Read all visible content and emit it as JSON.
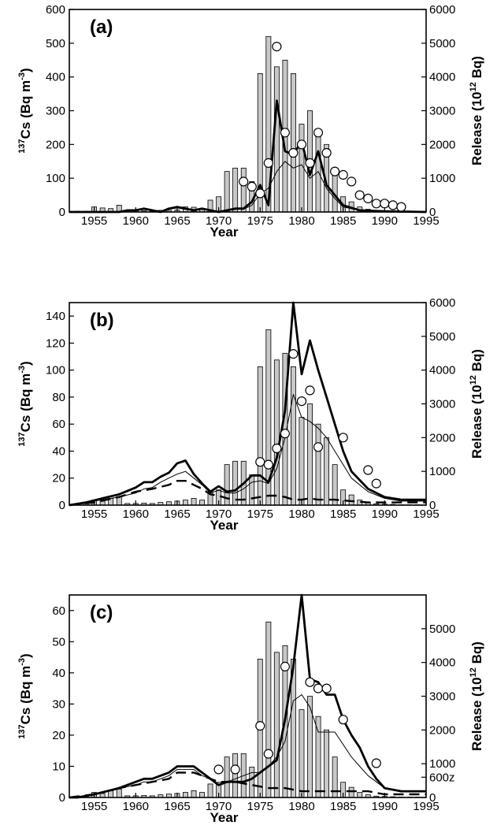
{
  "chart_data": [
    {
      "type": "bar",
      "panel_label": "(a)",
      "xlabel": "Year",
      "ylabel_left": {
        "sup": "137",
        "main": "Cs (Bq m",
        "unit_sup": "-3",
        "tail": ")"
      },
      "ylabel_right": {
        "main": "Release (10",
        "sup": "12",
        "tail": " Bq)"
      },
      "xlim": [
        1952,
        1995
      ],
      "ylim_left": [
        0,
        600
      ],
      "ylim_right": [
        0,
        6000
      ],
      "xticks": [
        "1955",
        "1960",
        "1965",
        "1970",
        "1975",
        "1980",
        "1985",
        "1990",
        "1995"
      ],
      "yticks_left": [
        "0",
        "100",
        "200",
        "300",
        "400",
        "500",
        "600"
      ],
      "yticks_right": [
        "0",
        "1000",
        "2000",
        "3000",
        "4000",
        "5000",
        "6000"
      ],
      "grid": false,
      "bars_release": {
        "x": [
          1952,
          1953,
          1954,
          1955,
          1956,
          1957,
          1958,
          1959,
          1960,
          1961,
          1962,
          1963,
          1964,
          1965,
          1966,
          1967,
          1968,
          1969,
          1970,
          1971,
          1972,
          1973,
          1974,
          1975,
          1976,
          1977,
          1978,
          1979,
          1980,
          1981,
          1982,
          1983,
          1984,
          1985,
          1986,
          1987,
          1988,
          1989,
          1990,
          1991,
          1992,
          1993,
          1994
        ],
        "values": [
          0,
          20,
          20,
          150,
          120,
          100,
          200,
          50,
          50,
          40,
          30,
          50,
          50,
          60,
          150,
          140,
          100,
          350,
          450,
          1200,
          1300,
          1300,
          900,
          4100,
          5200,
          4300,
          4500,
          4100,
          2600,
          3000,
          2400,
          2000,
          1200,
          450,
          300,
          150,
          80,
          40,
          30,
          20,
          10,
          10,
          10
        ]
      },
      "series": [
        {
          "role": "model-thick",
          "style": "thick",
          "x": [
            1952,
            1955,
            1958,
            1959,
            1960,
            1961,
            1962,
            1963,
            1964,
            1965,
            1966,
            1967,
            1968,
            1969,
            1970,
            1971,
            1972,
            1973,
            1974,
            1975,
            1976,
            1977,
            1978,
            1979,
            1980,
            1981,
            1982,
            1983,
            1984,
            1985,
            1987,
            1990,
            1995
          ],
          "y": [
            0,
            0,
            0,
            5,
            5,
            10,
            5,
            0,
            10,
            15,
            10,
            5,
            10,
            5,
            0,
            5,
            10,
            10,
            30,
            80,
            20,
            330,
            180,
            170,
            210,
            110,
            180,
            80,
            50,
            20,
            5,
            2,
            0
          ]
        },
        {
          "role": "model-thin",
          "style": "thin",
          "x": [
            1952,
            1955,
            1958,
            1959,
            1960,
            1961,
            1962,
            1963,
            1964,
            1965,
            1966,
            1967,
            1968,
            1969,
            1970,
            1971,
            1972,
            1973,
            1974,
            1975,
            1976,
            1977,
            1978,
            1979,
            1980,
            1981,
            1982,
            1983,
            1984,
            1985,
            1987,
            1990,
            1995
          ],
          "y": [
            0,
            0,
            0,
            3,
            5,
            8,
            5,
            0,
            8,
            12,
            8,
            5,
            8,
            3,
            0,
            3,
            8,
            8,
            20,
            55,
            70,
            120,
            150,
            130,
            140,
            100,
            120,
            70,
            40,
            15,
            5,
            2,
            0
          ]
        },
        {
          "role": "observations",
          "style": "circle",
          "x": [
            1973,
            1974,
            1975,
            1976,
            1977,
            1978,
            1979,
            1980,
            1981,
            1982,
            1983,
            1984,
            1985,
            1986,
            1987,
            1988,
            1989,
            1990,
            1991,
            1992
          ],
          "y": [
            90,
            75,
            55,
            145,
            490,
            235,
            175,
            200,
            145,
            235,
            175,
            120,
            110,
            90,
            50,
            40,
            25,
            25,
            20,
            15
          ]
        }
      ]
    },
    {
      "type": "bar",
      "panel_label": "(b)",
      "xlabel": "Year",
      "ylabel_left": {
        "sup": "137",
        "main": "Cs (Bq m",
        "unit_sup": "-3",
        "tail": ")"
      },
      "ylabel_right": {
        "main": "Release (10",
        "sup": "12",
        "tail": " Bq)"
      },
      "xlim": [
        1952,
        1995
      ],
      "ylim_left": [
        0,
        150
      ],
      "ylim_right": [
        0,
        6000
      ],
      "xticks": [
        "1955",
        "1960",
        "1965",
        "1970",
        "1975",
        "1980",
        "1985",
        "1990",
        "1995"
      ],
      "yticks_left": [
        "0",
        "20",
        "40",
        "60",
        "80",
        "100",
        "120",
        "140"
      ],
      "yticks_right": [
        "0",
        "1000",
        "2000",
        "3000",
        "4000",
        "5000",
        "6000"
      ],
      "grid": false,
      "bars_release": {
        "x": [
          1952,
          1953,
          1954,
          1955,
          1956,
          1957,
          1958,
          1959,
          1960,
          1961,
          1962,
          1963,
          1964,
          1965,
          1966,
          1967,
          1968,
          1969,
          1970,
          1971,
          1972,
          1973,
          1974,
          1975,
          1976,
          1977,
          1978,
          1979,
          1980,
          1981,
          1982,
          1983,
          1984,
          1985,
          1986,
          1987,
          1988,
          1989,
          1990,
          1991,
          1992,
          1993,
          1994
        ],
        "values": [
          0,
          20,
          50,
          150,
          120,
          200,
          250,
          50,
          50,
          60,
          50,
          80,
          100,
          120,
          150,
          200,
          150,
          400,
          450,
          1200,
          1300,
          1300,
          900,
          4100,
          5200,
          4300,
          4500,
          4100,
          2600,
          3000,
          2400,
          2000,
          1200,
          450,
          300,
          150,
          80,
          40,
          30,
          20,
          10,
          10,
          10
        ]
      },
      "series": [
        {
          "role": "model-thick",
          "style": "thick",
          "x": [
            1952,
            1954,
            1956,
            1958,
            1960,
            1961,
            1962,
            1963,
            1964,
            1965,
            1966,
            1967,
            1968,
            1969,
            1970,
            1971,
            1972,
            1973,
            1974,
            1975,
            1976,
            1977,
            1978,
            1979,
            1980,
            1981,
            1982,
            1983,
            1984,
            1985,
            1986,
            1988,
            1990,
            1992,
            1995
          ],
          "y": [
            0,
            2,
            5,
            8,
            13,
            17,
            17,
            21,
            24,
            31,
            33,
            23,
            16,
            10,
            14,
            10,
            11,
            16,
            22,
            22,
            17,
            35,
            70,
            150,
            97,
            122,
            100,
            80,
            60,
            40,
            25,
            12,
            6,
            4,
            4
          ]
        },
        {
          "role": "model-thin",
          "style": "thin",
          "x": [
            1952,
            1954,
            1956,
            1958,
            1960,
            1961,
            1962,
            1963,
            1964,
            1965,
            1966,
            1967,
            1968,
            1969,
            1970,
            1971,
            1972,
            1973,
            1974,
            1975,
            1976,
            1977,
            1978,
            1979,
            1980,
            1981,
            1982,
            1983,
            1984,
            1985,
            1986,
            1988,
            1990,
            1992,
            1995
          ],
          "y": [
            0,
            2,
            4,
            6,
            9,
            12,
            13,
            17,
            20,
            23,
            25,
            20,
            15,
            9,
            11,
            9,
            9,
            12,
            17,
            18,
            16,
            27,
            50,
            82,
            65,
            62,
            57,
            50,
            40,
            30,
            20,
            10,
            5,
            3,
            3
          ]
        },
        {
          "role": "model-dashed",
          "style": "dashed",
          "x": [
            1952,
            1955,
            1958,
            1960,
            1962,
            1964,
            1965,
            1966,
            1967,
            1968,
            1969,
            1970,
            1971,
            1972,
            1973,
            1974,
            1975,
            1976,
            1977,
            1978,
            1979,
            1980,
            1981,
            1982,
            1984,
            1986,
            1988,
            1990,
            1995
          ],
          "y": [
            0,
            2,
            6,
            10,
            12,
            15,
            18,
            18,
            15,
            12,
            8,
            7,
            5,
            4,
            4,
            5,
            6,
            7,
            7,
            6,
            4,
            4,
            5,
            4,
            4,
            3,
            2,
            2,
            2
          ]
        },
        {
          "role": "observations",
          "style": "circle",
          "x": [
            1975,
            1976,
            1977,
            1978,
            1979,
            1980,
            1981,
            1982,
            1985,
            1988,
            1989
          ],
          "y": [
            32,
            30,
            42,
            53,
            112,
            77,
            85,
            43,
            50,
            26,
            16
          ]
        }
      ]
    },
    {
      "type": "bar",
      "panel_label": "(c)",
      "xlabel": "Year",
      "ylabel_left": {
        "sup": "137",
        "main": "Cs (Bq m",
        "unit_sup": "-3",
        "tail": ")"
      },
      "ylabel_right": {
        "main": "Release (10",
        "sup": "12",
        "tail": " Bq)"
      },
      "xlim": [
        1952,
        1995
      ],
      "ylim_left": [
        0,
        65
      ],
      "ylim_right": [
        0,
        6000
      ],
      "xticks": [
        "1955",
        "1960",
        "1965",
        "1970",
        "1975",
        "1980",
        "1985",
        "1990",
        "1995"
      ],
      "yticks_left": [
        "0",
        "10",
        "20",
        "30",
        "40",
        "50",
        "60"
      ],
      "yticks_right": [
        "0",
        "1000",
        "2000",
        "3000",
        "4000",
        "5000",
        "600z"
      ],
      "grid": false,
      "bars_release": {
        "x": [
          1952,
          1953,
          1954,
          1955,
          1956,
          1957,
          1958,
          1959,
          1960,
          1961,
          1962,
          1963,
          1964,
          1965,
          1966,
          1967,
          1968,
          1969,
          1970,
          1971,
          1972,
          1973,
          1974,
          1975,
          1976,
          1977,
          1978,
          1979,
          1980,
          1981,
          1982,
          1983,
          1984,
          1985,
          1986,
          1987,
          1988,
          1989,
          1990,
          1991,
          1992,
          1993,
          1994
        ],
        "values": [
          0,
          20,
          50,
          150,
          120,
          200,
          250,
          50,
          50,
          60,
          50,
          80,
          100,
          120,
          150,
          200,
          150,
          400,
          450,
          1200,
          1300,
          1300,
          900,
          4100,
          5200,
          4300,
          4500,
          4100,
          2600,
          3000,
          2400,
          2000,
          1200,
          450,
          300,
          150,
          80,
          40,
          30,
          20,
          10,
          10,
          10
        ]
      },
      "series": [
        {
          "role": "model-thick",
          "style": "thick",
          "x": [
            1952,
            1953,
            1955,
            1958,
            1960,
            1961,
            1962,
            1963,
            1964,
            1965,
            1966,
            1967,
            1968,
            1969,
            1970,
            1971,
            1972,
            1973,
            1974,
            1975,
            1976,
            1977,
            1978,
            1979,
            1980,
            1981,
            1982,
            1983,
            1984,
            1985,
            1986,
            1987,
            1988,
            1989,
            1990,
            1992,
            1995
          ],
          "y": [
            0,
            0,
            1,
            3,
            5,
            6,
            6,
            7,
            8,
            10,
            10,
            10,
            8,
            6,
            4,
            5,
            5,
            5,
            6,
            8,
            10,
            12,
            25,
            42,
            65,
            38,
            37,
            33,
            33,
            25,
            20,
            16,
            10,
            6,
            3,
            2,
            2
          ]
        },
        {
          "role": "model-thin",
          "style": "thin",
          "x": [
            1952,
            1953,
            1955,
            1958,
            1960,
            1961,
            1962,
            1963,
            1964,
            1965,
            1966,
            1967,
            1968,
            1969,
            1970,
            1971,
            1972,
            1973,
            1974,
            1975,
            1976,
            1977,
            1978,
            1979,
            1980,
            1981,
            1982,
            1983,
            1984,
            1985,
            1986,
            1987,
            1988,
            1989,
            1990,
            1992,
            1995
          ],
          "y": [
            0,
            0,
            1,
            3,
            4,
            5,
            5,
            6,
            7,
            9,
            9,
            9,
            7,
            6,
            4,
            5,
            6,
            7,
            8,
            8,
            10,
            13,
            18,
            31,
            33,
            29,
            21,
            21,
            21,
            17,
            13,
            10,
            7,
            5,
            3,
            2,
            2
          ]
        },
        {
          "role": "model-dashed",
          "style": "dashed",
          "x": [
            1952,
            1955,
            1958,
            1960,
            1962,
            1964,
            1965,
            1966,
            1967,
            1968,
            1969,
            1970,
            1972,
            1974,
            1976,
            1978,
            1980,
            1982,
            1984,
            1986,
            1988,
            1990,
            1995
          ],
          "y": [
            0,
            1,
            3,
            4,
            5,
            6,
            8,
            8,
            8,
            7,
            6,
            5,
            5,
            4,
            3,
            3,
            2,
            2,
            2,
            2,
            2,
            1,
            1
          ]
        },
        {
          "role": "observations",
          "style": "circle",
          "x": [
            1970,
            1972,
            1975,
            1976,
            1978,
            1981,
            1982,
            1983,
            1985,
            1989
          ],
          "y": [
            9,
            9,
            23,
            14,
            42,
            37,
            35,
            35,
            25,
            11
          ]
        }
      ]
    }
  ]
}
